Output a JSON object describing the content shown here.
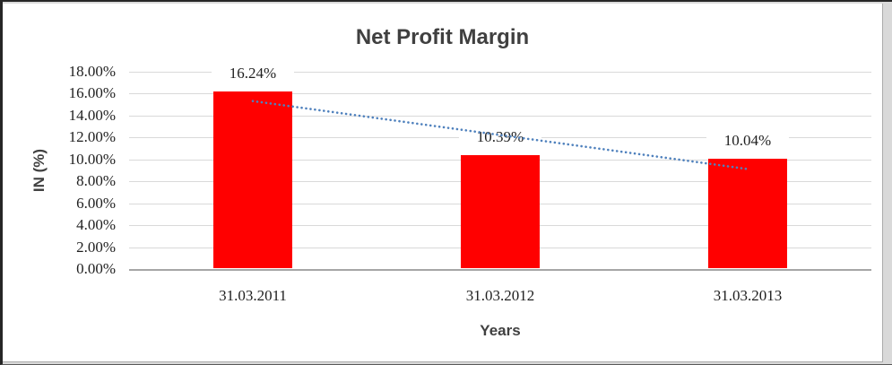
{
  "chart_data": {
    "type": "bar",
    "title": "Net Profit Margin",
    "xlabel": "Years",
    "ylabel": "IN (%)",
    "categories": [
      "31.03.2011",
      "31.03.2012",
      "31.03.2013"
    ],
    "values": [
      16.24,
      10.39,
      10.04
    ],
    "data_labels": [
      "16.24%",
      "10.39%",
      "10.04%"
    ],
    "ytick_labels": [
      "0.00%",
      "2.00%",
      "4.00%",
      "6.00%",
      "8.00%",
      "10.00%",
      "12.00%",
      "14.00%",
      "16.00%",
      "18.00%"
    ],
    "ylim": [
      0,
      18
    ],
    "ytick_step": 2,
    "grid": true,
    "legend_position": "none",
    "bar_color": "#ff0000",
    "trendline": {
      "type": "linear",
      "style": "dotted",
      "color": "#4f81bd"
    },
    "colors": {
      "title_text": "#404040",
      "tick_text": "#1f1f1f",
      "gridline": "#d9d9d9",
      "axis_line": "#a6a6a6",
      "frame_background": "#d9d9d9",
      "chart_background": "#ffffff",
      "chart_border": "#ababab"
    }
  }
}
